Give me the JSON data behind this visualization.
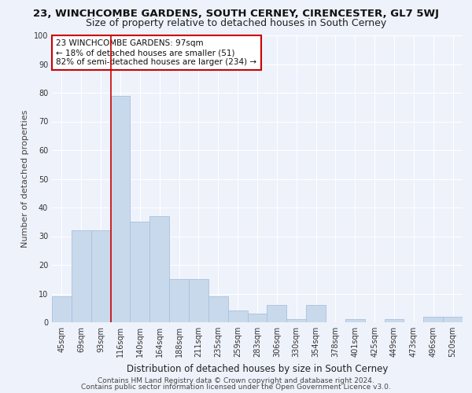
{
  "title": "23, WINCHCOMBE GARDENS, SOUTH CERNEY, CIRENCESTER, GL7 5WJ",
  "subtitle": "Size of property relative to detached houses in South Cerney",
  "xlabel": "Distribution of detached houses by size in South Cerney",
  "ylabel": "Number of detached properties",
  "categories": [
    "45sqm",
    "69sqm",
    "93sqm",
    "116sqm",
    "140sqm",
    "164sqm",
    "188sqm",
    "211sqm",
    "235sqm",
    "259sqm",
    "283sqm",
    "306sqm",
    "330sqm",
    "354sqm",
    "378sqm",
    "401sqm",
    "425sqm",
    "449sqm",
    "473sqm",
    "496sqm",
    "520sqm"
  ],
  "values": [
    9,
    32,
    32,
    79,
    35,
    37,
    15,
    15,
    9,
    4,
    3,
    6,
    1,
    6,
    0,
    1,
    0,
    1,
    0,
    2,
    2
  ],
  "bar_color": "#c9d9ec",
  "bar_edge_color": "#a8c0db",
  "vline_x": 2.5,
  "vline_color": "#cc0000",
  "annotation_text": "23 WINCHCOMBE GARDENS: 97sqm\n← 18% of detached houses are smaller (51)\n82% of semi-detached houses are larger (234) →",
  "annotation_box_color": "#cc0000",
  "ylim": [
    0,
    100
  ],
  "yticks": [
    0,
    10,
    20,
    30,
    40,
    50,
    60,
    70,
    80,
    90,
    100
  ],
  "footer1": "Contains HM Land Registry data © Crown copyright and database right 2024.",
  "footer2": "Contains public sector information licensed under the Open Government Licence v3.0.",
  "background_color": "#eef2fb",
  "grid_color": "#ffffff",
  "title_fontsize": 9.5,
  "subtitle_fontsize": 9,
  "xlabel_fontsize": 8.5,
  "ylabel_fontsize": 8,
  "tick_fontsize": 7,
  "footer_fontsize": 6.5,
  "annotation_fontsize": 7.5
}
